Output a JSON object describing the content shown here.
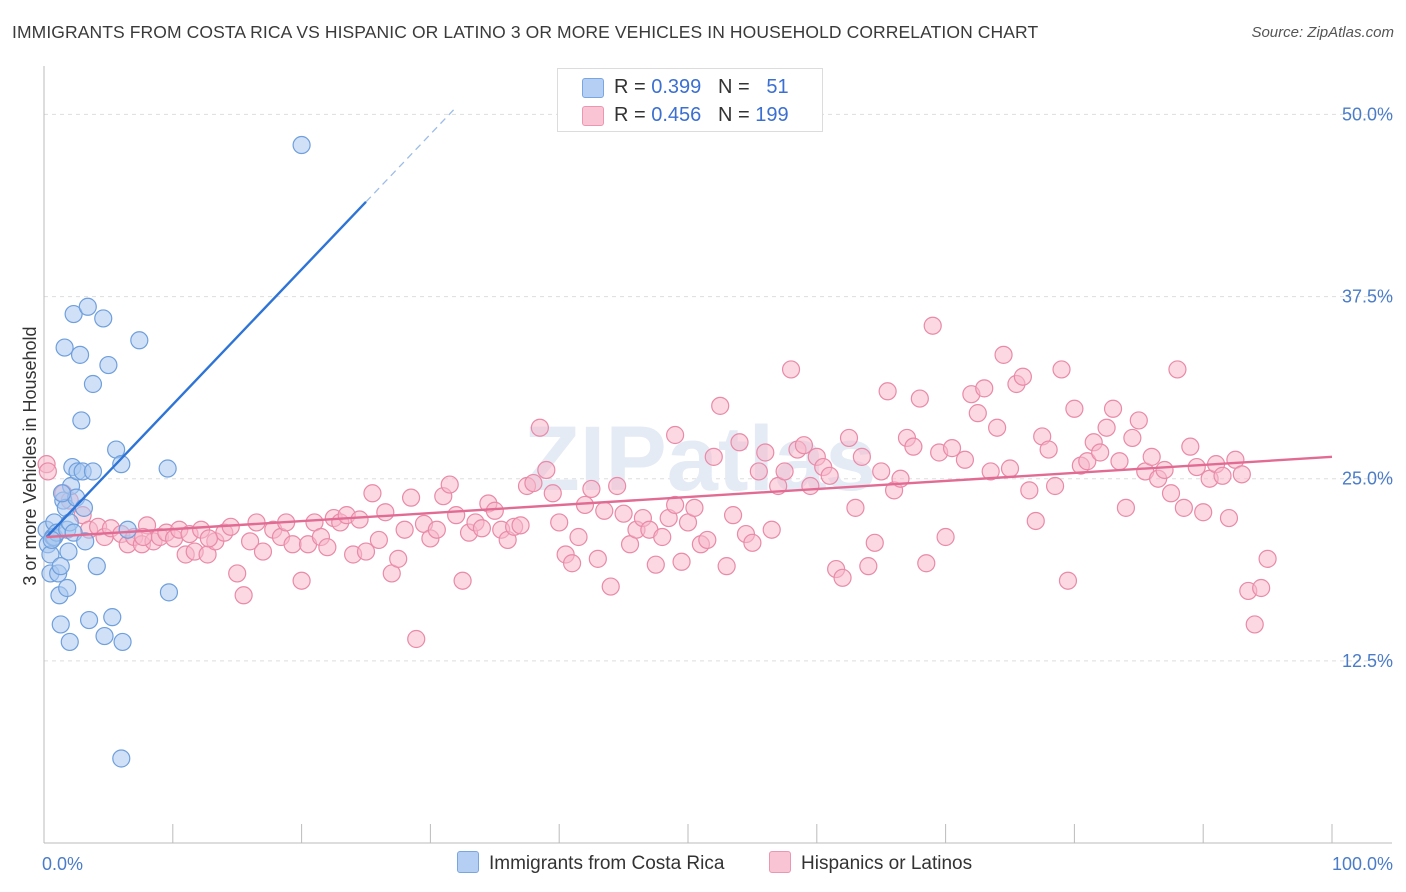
{
  "title": "IMMIGRANTS FROM COSTA RICA VS HISPANIC OR LATINO 3 OR MORE VEHICLES IN HOUSEHOLD CORRELATION CHART",
  "source": "Source: ZipAtlas.com",
  "watermark": "ZIPatlas",
  "legend": {
    "blue": {
      "r_label": "R =",
      "r_value": "0.399",
      "n_label": "N =",
      "n_value": "51"
    },
    "pink": {
      "r_label": "R =",
      "r_value": "0.456",
      "n_label": "N =",
      "n_value": "199"
    }
  },
  "bottom_legend": {
    "blue": "Immigrants from Costa Rica",
    "pink": "Hispanics or Latinos"
  },
  "colors": {
    "blue_fill": "#a9c8f0",
    "blue_stroke": "#6f9fdc",
    "blue_line": "#2e74d6",
    "pink_fill": "#f7b8cb",
    "pink_stroke": "#e98aa8",
    "pink_line": "#e26b94",
    "label": "#4a7cc7"
  },
  "chart_data": {
    "type": "scatter",
    "title": "IMMIGRANTS FROM COSTA RICA VS HISPANIC OR LATINO 3 OR MORE VEHICLES IN HOUSEHOLD CORRELATION CHART",
    "xlabel": "",
    "ylabel": "3 or more Vehicles in Household",
    "xlim": [
      0,
      100
    ],
    "ylim": [
      0,
      52.5
    ],
    "y_ticks": [
      12.5,
      25.0,
      37.5,
      50.0
    ],
    "y_tick_labels": [
      "12.5%",
      "25.0%",
      "37.5%",
      "50.0%"
    ],
    "x_tick_labels": [
      "0.0%",
      "100.0%"
    ],
    "series": [
      {
        "name": "Immigrants from Costa Rica",
        "color": "blue",
        "trend": {
          "x0": 0.2,
          "y0": 21.0,
          "x1": 25.0,
          "y1": 44.0,
          "dashed_to_x": 32.0,
          "dashed_to_y": 50.5
        },
        "points": [
          [
            0.2,
            21.5
          ],
          [
            0.3,
            20.5
          ],
          [
            0.5,
            19.8
          ],
          [
            0.5,
            18.5
          ],
          [
            0.7,
            21.0
          ],
          [
            0.8,
            22.0
          ],
          [
            0.8,
            21.0
          ],
          [
            1.0,
            21.3
          ],
          [
            1.1,
            18.5
          ],
          [
            1.2,
            17.0
          ],
          [
            1.3,
            19.0
          ],
          [
            1.3,
            15.0
          ],
          [
            1.5,
            23.5
          ],
          [
            1.6,
            34.0
          ],
          [
            1.7,
            23.0
          ],
          [
            1.8,
            21.5
          ],
          [
            1.8,
            17.5
          ],
          [
            1.9,
            20.0
          ],
          [
            2.0,
            22.0
          ],
          [
            2.0,
            13.8
          ],
          [
            2.1,
            24.5
          ],
          [
            2.2,
            25.8
          ],
          [
            2.3,
            36.3
          ],
          [
            2.3,
            21.3
          ],
          [
            2.5,
            23.7
          ],
          [
            2.6,
            25.5
          ],
          [
            2.8,
            33.5
          ],
          [
            2.9,
            29.0
          ],
          [
            3.0,
            25.5
          ],
          [
            3.1,
            23.0
          ],
          [
            3.2,
            20.7
          ],
          [
            3.4,
            36.8
          ],
          [
            3.5,
            15.3
          ],
          [
            3.8,
            31.5
          ],
          [
            3.8,
            25.5
          ],
          [
            4.1,
            19.0
          ],
          [
            4.6,
            36.0
          ],
          [
            4.7,
            14.2
          ],
          [
            5.0,
            32.8
          ],
          [
            5.3,
            15.5
          ],
          [
            5.6,
            27.0
          ],
          [
            6.0,
            26.0
          ],
          [
            6.1,
            13.8
          ],
          [
            6.5,
            21.5
          ],
          [
            7.4,
            34.5
          ],
          [
            9.6,
            25.7
          ],
          [
            9.7,
            17.2
          ],
          [
            6.0,
            5.8
          ],
          [
            20.0,
            47.9
          ],
          [
            1.4,
            24.0
          ],
          [
            0.6,
            20.8
          ]
        ]
      },
      {
        "name": "Hispanics or Latinos",
        "color": "pink",
        "trend": {
          "x0": 0.2,
          "y0": 21.0,
          "x1": 100.0,
          "y1": 26.5
        },
        "points": [
          [
            0.2,
            26.0
          ],
          [
            0.3,
            25.5
          ],
          [
            1.5,
            24.0
          ],
          [
            2.0,
            23.5
          ],
          [
            3.0,
            22.5
          ],
          [
            3.5,
            21.5
          ],
          [
            4.2,
            21.7
          ],
          [
            4.7,
            21.0
          ],
          [
            5.2,
            21.6
          ],
          [
            6.0,
            21.2
          ],
          [
            6.5,
            20.5
          ],
          [
            7.0,
            21.0
          ],
          [
            7.6,
            20.5
          ],
          [
            8.0,
            21.8
          ],
          [
            8.5,
            20.7
          ],
          [
            9.0,
            21.0
          ],
          [
            9.5,
            21.3
          ],
          [
            10.1,
            20.9
          ],
          [
            10.5,
            21.5
          ],
          [
            11.0,
            19.8
          ],
          [
            11.3,
            21.2
          ],
          [
            11.7,
            20.0
          ],
          [
            12.2,
            21.5
          ],
          [
            12.7,
            19.8
          ],
          [
            13.3,
            20.7
          ],
          [
            14.0,
            21.3
          ],
          [
            14.5,
            21.7
          ],
          [
            15.0,
            18.5
          ],
          [
            15.5,
            17.0
          ],
          [
            16.0,
            20.7
          ],
          [
            16.5,
            22.0
          ],
          [
            17.0,
            20.0
          ],
          [
            17.8,
            21.5
          ],
          [
            18.4,
            21.0
          ],
          [
            18.8,
            22.0
          ],
          [
            19.3,
            20.5
          ],
          [
            20.0,
            18.0
          ],
          [
            20.5,
            20.5
          ],
          [
            21.0,
            22.0
          ],
          [
            21.5,
            21.0
          ],
          [
            22.0,
            20.3
          ],
          [
            22.5,
            22.3
          ],
          [
            23.0,
            22.0
          ],
          [
            23.5,
            22.5
          ],
          [
            24.0,
            19.8
          ],
          [
            24.5,
            22.2
          ],
          [
            25.0,
            20.0
          ],
          [
            25.5,
            24.0
          ],
          [
            26.0,
            20.8
          ],
          [
            26.5,
            22.7
          ],
          [
            27.0,
            18.5
          ],
          [
            27.5,
            19.5
          ],
          [
            28.0,
            21.5
          ],
          [
            28.5,
            23.7
          ],
          [
            28.9,
            14.0
          ],
          [
            29.5,
            21.9
          ],
          [
            30.0,
            20.9
          ],
          [
            30.5,
            21.5
          ],
          [
            31.0,
            23.8
          ],
          [
            31.5,
            24.6
          ],
          [
            32.0,
            22.5
          ],
          [
            32.5,
            18.0
          ],
          [
            33.0,
            21.3
          ],
          [
            33.5,
            22.0
          ],
          [
            34.0,
            21.6
          ],
          [
            34.5,
            23.3
          ],
          [
            35.0,
            22.8
          ],
          [
            35.5,
            21.5
          ],
          [
            36.0,
            20.8
          ],
          [
            36.5,
            21.7
          ],
          [
            37.0,
            21.8
          ],
          [
            37.5,
            24.5
          ],
          [
            38.0,
            24.7
          ],
          [
            38.5,
            28.5
          ],
          [
            39.0,
            25.6
          ],
          [
            39.5,
            24.0
          ],
          [
            40.0,
            22.0
          ],
          [
            40.5,
            19.8
          ],
          [
            41.0,
            19.2
          ],
          [
            41.5,
            21.0
          ],
          [
            42.0,
            23.2
          ],
          [
            42.5,
            24.3
          ],
          [
            43.0,
            19.5
          ],
          [
            43.5,
            22.8
          ],
          [
            44.0,
            17.6
          ],
          [
            44.5,
            24.5
          ],
          [
            45.0,
            22.6
          ],
          [
            45.5,
            20.5
          ],
          [
            46.0,
            21.5
          ],
          [
            46.5,
            22.3
          ],
          [
            47.0,
            21.5
          ],
          [
            47.5,
            19.1
          ],
          [
            48.0,
            21.0
          ],
          [
            48.5,
            22.3
          ],
          [
            49.0,
            23.2
          ],
          [
            49.5,
            19.3
          ],
          [
            50.0,
            22.0
          ],
          [
            50.5,
            23.0
          ],
          [
            51.0,
            20.5
          ],
          [
            51.5,
            20.8
          ],
          [
            52.0,
            26.5
          ],
          [
            52.5,
            30.0
          ],
          [
            53.0,
            19.0
          ],
          [
            53.5,
            22.5
          ],
          [
            54.0,
            27.5
          ],
          [
            54.5,
            21.2
          ],
          [
            55.0,
            20.6
          ],
          [
            55.5,
            25.5
          ],
          [
            56.0,
            26.8
          ],
          [
            56.5,
            21.5
          ],
          [
            57.0,
            24.5
          ],
          [
            57.5,
            25.5
          ],
          [
            58.0,
            32.5
          ],
          [
            58.5,
            27.0
          ],
          [
            59.0,
            27.3
          ],
          [
            59.5,
            24.5
          ],
          [
            60.0,
            26.5
          ],
          [
            60.5,
            25.8
          ],
          [
            61.0,
            25.2
          ],
          [
            61.5,
            18.8
          ],
          [
            62.0,
            18.2
          ],
          [
            62.5,
            27.8
          ],
          [
            63.0,
            23.0
          ],
          [
            63.5,
            26.5
          ],
          [
            64.0,
            19.0
          ],
          [
            64.5,
            20.6
          ],
          [
            65.0,
            25.5
          ],
          [
            65.5,
            31.0
          ],
          [
            66.0,
            24.2
          ],
          [
            66.5,
            25.0
          ],
          [
            67.0,
            27.8
          ],
          [
            67.5,
            27.2
          ],
          [
            68.0,
            30.5
          ],
          [
            68.5,
            19.2
          ],
          [
            69.0,
            35.5
          ],
          [
            69.5,
            26.8
          ],
          [
            70.0,
            21.0
          ],
          [
            70.5,
            27.1
          ],
          [
            71.5,
            26.3
          ],
          [
            72.0,
            30.8
          ],
          [
            72.5,
            29.5
          ],
          [
            73.0,
            31.2
          ],
          [
            73.5,
            25.5
          ],
          [
            74.0,
            28.5
          ],
          [
            74.5,
            33.5
          ],
          [
            75.0,
            25.7
          ],
          [
            75.5,
            31.5
          ],
          [
            76.0,
            32.0
          ],
          [
            76.5,
            24.2
          ],
          [
            77.0,
            22.1
          ],
          [
            77.5,
            27.9
          ],
          [
            78.0,
            27.0
          ],
          [
            78.5,
            24.5
          ],
          [
            79.0,
            32.5
          ],
          [
            79.5,
            18.0
          ],
          [
            80.0,
            29.8
          ],
          [
            80.5,
            25.9
          ],
          [
            81.0,
            26.2
          ],
          [
            81.5,
            27.5
          ],
          [
            82.0,
            26.8
          ],
          [
            82.5,
            28.5
          ],
          [
            83.0,
            29.8
          ],
          [
            83.5,
            26.2
          ],
          [
            84.0,
            23.0
          ],
          [
            84.5,
            27.8
          ],
          [
            85.0,
            29.0
          ],
          [
            85.5,
            25.5
          ],
          [
            86.0,
            26.5
          ],
          [
            86.5,
            25.0
          ],
          [
            87.0,
            25.6
          ],
          [
            87.5,
            24.0
          ],
          [
            88.0,
            32.5
          ],
          [
            88.5,
            23.0
          ],
          [
            89.0,
            27.2
          ],
          [
            89.5,
            25.8
          ],
          [
            90.0,
            22.7
          ],
          [
            90.5,
            25.0
          ],
          [
            91.0,
            26.0
          ],
          [
            91.5,
            25.2
          ],
          [
            92.0,
            22.3
          ],
          [
            92.5,
            26.3
          ],
          [
            93.0,
            25.3
          ],
          [
            93.5,
            17.3
          ],
          [
            94.0,
            15.0
          ],
          [
            94.5,
            17.5
          ],
          [
            95.0,
            19.5
          ],
          [
            7.7,
            21.0
          ],
          [
            12.8,
            20.9
          ],
          [
            49.0,
            28.0
          ]
        ]
      }
    ]
  }
}
